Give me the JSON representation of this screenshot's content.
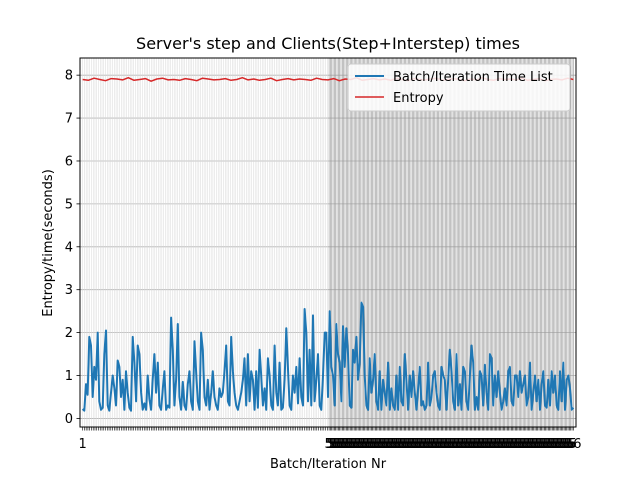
{
  "chart_data": {
    "type": "line",
    "title": "Server's step and Clients(Step+Interstep) times",
    "xlabel": "Batch/Iteration Nr",
    "ylabel": "Entropy/time(seconds)",
    "xlim": [
      -5,
      1122
    ],
    "ylim": [
      -0.2,
      8.4
    ],
    "yticks": [
      0,
      1,
      2,
      3,
      4,
      5,
      6,
      7,
      8
    ],
    "xtick_labels": [
      "1",
      "5",
      "6"
    ],
    "grid": true,
    "legend_position": "upper-right",
    "x_start": 1,
    "x_end": 1116,
    "series": [
      {
        "name": "Batch/Iteration Time List",
        "color": "#1f77b4",
        "values": [
          0.22,
          0.18,
          0.8,
          0.55,
          1.9,
          1.7,
          0.5,
          1.2,
          0.9,
          2.0,
          0.4,
          0.2,
          0.25,
          1.5,
          2.05,
          0.3,
          0.18,
          0.6,
          1.0,
          0.7,
          0.3,
          1.35,
          1.2,
          0.5,
          0.9,
          0.2,
          1.1,
          0.6,
          0.25,
          0.18,
          1.9,
          1.3,
          0.4,
          1.7,
          1.5,
          0.6,
          0.2,
          0.35,
          0.2,
          1.0,
          0.45,
          0.2,
          0.9,
          1.5,
          0.6,
          1.3,
          0.3,
          0.2,
          0.7,
          1.1,
          0.2,
          0.3,
          0.25,
          2.35,
          1.6,
          0.3,
          0.9,
          2.2,
          0.5,
          0.2,
          0.85,
          0.3,
          0.2,
          0.8,
          1.1,
          0.4,
          0.2,
          1.8,
          1.1,
          0.4,
          0.2,
          2.0,
          1.6,
          0.5,
          0.3,
          0.9,
          0.2,
          0.6,
          1.1,
          0.5,
          0.3,
          0.2,
          0.7,
          0.5,
          0.6,
          1.1,
          1.7,
          0.4,
          0.3,
          1.9,
          1.1,
          0.6,
          0.3,
          0.2,
          0.4,
          0.6,
          0.9,
          1.4,
          0.3,
          1.5,
          0.4,
          1.1,
          0.9,
          0.2,
          1.1,
          0.25,
          1.6,
          1.0,
          0.3,
          0.7,
          0.2,
          1.4,
          1.0,
          0.3,
          0.2,
          1.7,
          0.6,
          0.3,
          1.3,
          0.2,
          0.25,
          0.9,
          2.1,
          1.2,
          0.3,
          0.2,
          1.0,
          0.6,
          1.2,
          0.35,
          1.4,
          0.5,
          0.3,
          2.55,
          2.0,
          0.4,
          1.6,
          0.3,
          2.4,
          0.4,
          0.9,
          1.5,
          0.3,
          0.2,
          1.0,
          2.0,
          2.0,
          0.5,
          2.5,
          1.2,
          1.0,
          0.3,
          2.2,
          1.5,
          1.3,
          0.4,
          2.15,
          1.2,
          2.1,
          1.5,
          0.3,
          0.25,
          1.6,
          1.3,
          1.9,
          0.9,
          1.3,
          2.7,
          2.6,
          1.0,
          0.3,
          0.2,
          1.4,
          0.6,
          0.9,
          1.5,
          0.4,
          0.2,
          1.1,
          0.2,
          0.9,
          0.6,
          0.3,
          1.3,
          0.2,
          0.7,
          0.3,
          0.2,
          1.0,
          0.2,
          1.2,
          0.4,
          0.3,
          1.5,
          0.9,
          0.2,
          1.0,
          0.5,
          1.1,
          0.6,
          0.2,
          0.7,
          1.2,
          0.3,
          0.4,
          0.2,
          0.3,
          1.3,
          0.3,
          0.5,
          1.0,
          1.1,
          0.6,
          0.3,
          0.2,
          1.2,
          1.0,
          0.9,
          0.2,
          0.9,
          1.6,
          1.1,
          0.4,
          0.2,
          1.5,
          0.3,
          0.8,
          0.2,
          1.2,
          1.1,
          0.4,
          0.2,
          1.0,
          1.7,
          1.3,
          0.2,
          0.5,
          0.2,
          1.1,
          1.0,
          0.3,
          1.25,
          0.6,
          0.2,
          1.5,
          1.4,
          0.3,
          1.0,
          0.5,
          1.1,
          0.6,
          0.2,
          0.4,
          0.7,
          0.3,
          1.1,
          1.2,
          0.4,
          0.3,
          1.0,
          1.0,
          0.5,
          1.1,
          0.6,
          0.8,
          1.0,
          0.3,
          0.5,
          1.3,
          0.2,
          0.6,
          1.0,
          0.4,
          0.9,
          0.2,
          0.8,
          1.1,
          0.3,
          0.25,
          0.9,
          0.3,
          1.1,
          0.6,
          1.0,
          0.3,
          0.2,
          1.1,
          0.4,
          1.3,
          0.2,
          0.9,
          1.0,
          0.7,
          0.2,
          0.25
        ]
      },
      {
        "name": "Entropy",
        "color": "#d62728",
        "values": [
          7.9,
          7.88,
          7.93,
          7.9,
          7.87,
          7.92,
          7.91,
          7.89,
          7.94,
          7.88,
          7.9,
          7.92,
          7.86,
          7.91,
          7.93,
          7.89,
          7.9,
          7.88,
          7.92,
          7.9,
          7.87,
          7.93,
          7.91,
          7.89,
          7.9,
          7.92,
          7.88,
          7.9,
          7.94,
          7.89,
          7.91,
          7.88,
          7.9,
          7.93,
          7.87,
          7.9,
          7.92,
          7.89,
          7.91,
          7.9,
          7.88,
          7.93,
          7.9,
          7.89,
          7.92,
          7.87,
          7.91,
          7.9,
          7.94,
          7.88,
          7.9,
          7.92,
          7.89,
          7.91,
          7.88,
          7.93,
          7.9,
          7.87,
          7.92,
          7.9,
          7.89,
          7.91,
          7.93,
          7.88,
          7.9,
          7.92,
          7.9,
          7.87,
          7.91,
          7.89,
          7.94,
          7.9,
          7.88,
          7.92,
          7.9,
          7.91,
          7.89,
          7.93,
          7.88,
          7.9,
          7.92,
          7.87,
          7.9,
          7.91,
          7.89,
          7.93,
          7.9
        ]
      }
    ]
  }
}
